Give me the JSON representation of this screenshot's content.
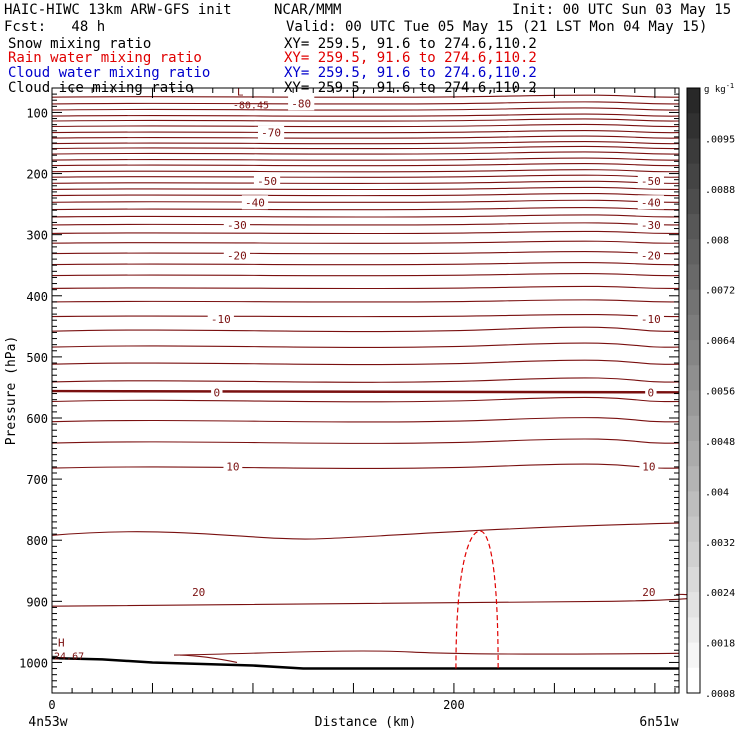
{
  "header": {
    "model_title": "HAIC-HIWC 13km ARW-GFS init",
    "org": "NCAR/MMM",
    "init": "Init: 00 UTC Sun 03 May 15",
    "fcst": "Fcst:   48 h",
    "valid": "Valid: 00 UTC Tue 05 May 15 (21 LST Mon 04 May 15)"
  },
  "legend": [
    {
      "label": "Snow mixing ratio",
      "xy": "XY= 259.5, 91.6 to 274.6,110.2",
      "color": "#000000"
    },
    {
      "label": "Rain water mixing ratio",
      "xy": "XY= 259.5, 91.6 to 274.6,110.2",
      "color": "#e00000"
    },
    {
      "label": "Cloud water mixing ratio",
      "xy": "XY= 259.5, 91.6 to 274.6,110.2",
      "color": "#0000cc"
    },
    {
      "label": "Cloud ice mixing ratio",
      "xy": "XY= 259.5, 91.6 to 274.6,110.2",
      "color": "#000000"
    }
  ],
  "chart_data": {
    "type": "line",
    "ylabel": "Pressure (hPa)",
    "xlabel": "Distance (km)",
    "x_ticks": [
      0,
      200
    ],
    "y_ticks": [
      100,
      200,
      300,
      400,
      500,
      600,
      700,
      800,
      900,
      1000
    ],
    "xlim": [
      0,
      312
    ],
    "ylim": [
      1050,
      60
    ],
    "left_endpoint": "4n53w",
    "right_endpoint": "6n51w",
    "contour_color": "#7a1010",
    "temperature_contour_labels": [
      {
        "label": "-80",
        "x": 124,
        "p": 85
      },
      {
        "label": "-70",
        "x": 109,
        "p": 133
      },
      {
        "label": "-50",
        "x": 107,
        "p": 212
      },
      {
        "label": "-50",
        "x": 298,
        "p": 212
      },
      {
        "label": "-40",
        "x": 101,
        "p": 247
      },
      {
        "label": "-40",
        "x": 298,
        "p": 247
      },
      {
        "label": "-30",
        "x": 92,
        "p": 284
      },
      {
        "label": "-30",
        "x": 298,
        "p": 284
      },
      {
        "label": "-20",
        "x": 92,
        "p": 334
      },
      {
        "label": "-20",
        "x": 298,
        "p": 334
      },
      {
        "label": "-10",
        "x": 84,
        "p": 438
      },
      {
        "label": "-10",
        "x": 298,
        "p": 438
      },
      {
        "label": "0",
        "x": 82,
        "p": 558
      },
      {
        "label": "0",
        "x": 298,
        "p": 558
      },
      {
        "label": "10",
        "x": 90,
        "p": 679
      },
      {
        "label": "10",
        "x": 297,
        "p": 679
      },
      {
        "label": "20",
        "x": 73,
        "p": 885
      },
      {
        "label": "20",
        "x": 297,
        "p": 885
      }
    ],
    "extrema": [
      {
        "symbol": "L",
        "value": "-80.45",
        "x": 92,
        "p": 84
      },
      {
        "symbol": "H",
        "value": "24.67",
        "x": 3,
        "p": 985
      }
    ],
    "colorbar": {
      "unit": "g kg",
      "unit_exp": "-1",
      "labels": [
        ".0095",
        ".0088",
        ".008",
        ".0072",
        ".0064",
        ".0056",
        ".0048",
        ".004",
        ".0032",
        ".0024",
        ".0018",
        ".0008"
      ]
    },
    "terrain_pressure": [
      {
        "x": 0,
        "p": 993
      },
      {
        "x": 25,
        "p": 995
      },
      {
        "x": 50,
        "p": 1000
      },
      {
        "x": 100,
        "p": 1005
      },
      {
        "x": 125,
        "p": 1010
      },
      {
        "x": 312,
        "p": 1010
      }
    ],
    "rain_water_region": {
      "x_left": 201,
      "x_top": 213,
      "x_right": 222,
      "p_top": 785,
      "p_base": 1010
    }
  }
}
